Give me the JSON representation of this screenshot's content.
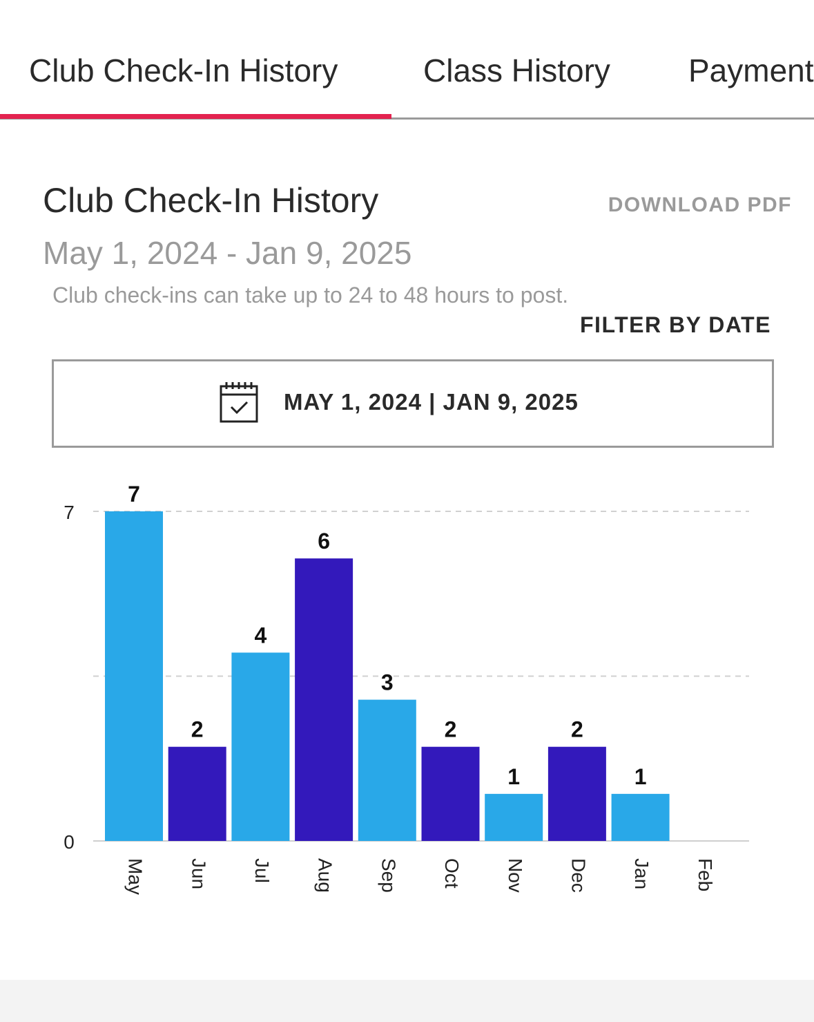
{
  "tabs": [
    {
      "label": "Club Check-In History",
      "active": true
    },
    {
      "label": "Class History",
      "active": false
    },
    {
      "label": "Payment",
      "active": false
    }
  ],
  "header": {
    "title": "Club Check-In History",
    "download_label": "DOWNLOAD PDF",
    "date_range": "May 1, 2024 - Jan 9, 2025",
    "note": "Club check-ins can take up to 24 to 48 hours to post.",
    "filter_label": "FILTER BY DATE"
  },
  "date_picker": {
    "icon": "calendar-check-icon",
    "value": "MAY 1, 2024 | JAN 9, 2025"
  },
  "colors": {
    "accent": "#e3234f",
    "bar_light": "#29a8e8",
    "bar_dark": "#3319bb"
  },
  "chart_data": {
    "type": "bar",
    "categories": [
      "May",
      "Jun",
      "Jul",
      "Aug",
      "Sep",
      "Oct",
      "Nov",
      "Dec",
      "Jan",
      "Feb"
    ],
    "values": [
      7,
      2,
      4,
      6,
      3,
      2,
      1,
      2,
      1,
      null
    ],
    "bar_colors": [
      "#29a8e8",
      "#3319bb",
      "#29a8e8",
      "#3319bb",
      "#29a8e8",
      "#3319bb",
      "#29a8e8",
      "#3319bb",
      "#29a8e8",
      "#3319bb"
    ],
    "ylim": [
      0,
      7
    ],
    "y_ticks": [
      0,
      7
    ],
    "gridlines": [
      3.5,
      7
    ],
    "grid": true,
    "data_labels": true,
    "title": "",
    "xlabel": "",
    "ylabel": ""
  }
}
